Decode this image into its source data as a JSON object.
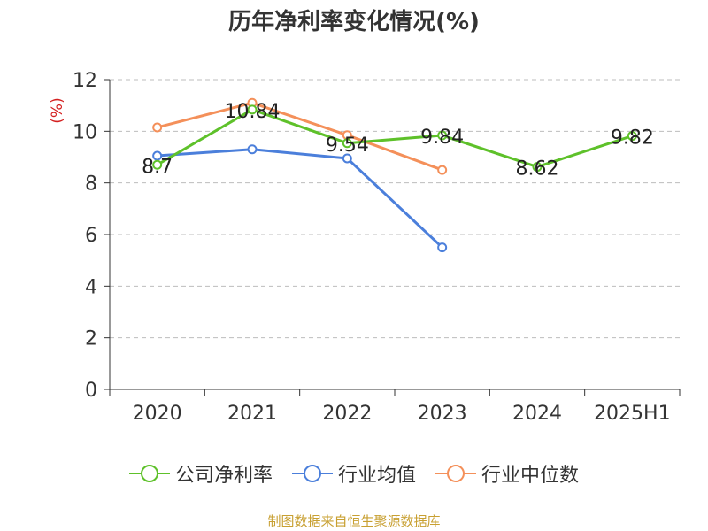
{
  "chart_data": {
    "type": "line",
    "title": "历年净利率变化情况(%)",
    "ylabel": "(%)",
    "xlabel": "",
    "categories": [
      "2020",
      "2021",
      "2022",
      "2023",
      "2024",
      "2025H1"
    ],
    "ylim": [
      0,
      12
    ],
    "yticks": [
      0,
      2,
      4,
      6,
      8,
      10,
      12
    ],
    "grid": "horizontal-dashed",
    "legend_position": "bottom",
    "series": [
      {
        "name": "公司净利率",
        "color": "#5ec12a",
        "values": [
          8.7,
          10.84,
          9.54,
          9.84,
          8.62,
          9.82
        ],
        "labels": [
          "8.7",
          "10.84",
          "9.54",
          "9.84",
          "8.62",
          "9.82"
        ]
      },
      {
        "name": "行业均值",
        "color": "#4b7fdb",
        "values": [
          9.05,
          9.3,
          8.95,
          5.5,
          null,
          null
        ],
        "labels": []
      },
      {
        "name": "行业中位数",
        "color": "#f4905a",
        "values": [
          10.15,
          11.1,
          9.85,
          8.5,
          null,
          null
        ],
        "labels": []
      }
    ]
  },
  "footer": "制图数据来自恒生聚源数据库"
}
